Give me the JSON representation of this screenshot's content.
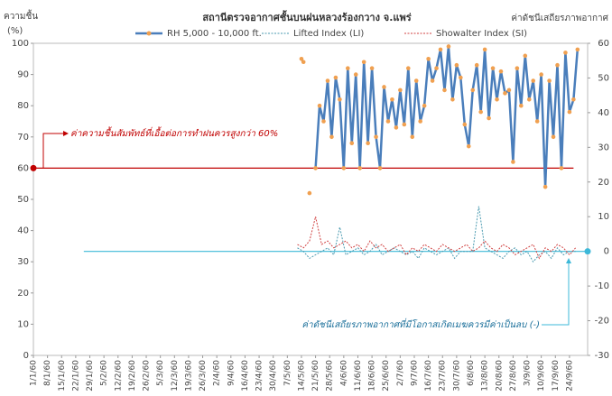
{
  "chart_data": {
    "type": "line",
    "title": "สถานีตรวจอากาศชั้นบนฝนหลวงร้องกวาง จ.แพร่",
    "y_label": "ความชื้น",
    "y_unit": "(%)",
    "y2_label": "ค่าดัชนีเสถียรภาพอากาศ",
    "ylim": [
      0,
      100
    ],
    "yticks": [
      0,
      10,
      20,
      30,
      40,
      50,
      60,
      70,
      80,
      90,
      100
    ],
    "y2lim": [
      -30,
      60
    ],
    "y2ticks": [
      -30,
      -20,
      -10,
      0,
      10,
      20,
      30,
      40,
      50,
      60
    ],
    "xlim": [
      0,
      275
    ],
    "xticks": [
      {
        "value": 0,
        "label": "1/1/60"
      },
      {
        "value": 7,
        "label": "8/1/60"
      },
      {
        "value": 14,
        "label": "15/1/60"
      },
      {
        "value": 21,
        "label": "22/1/60"
      },
      {
        "value": 28,
        "label": "29/1/60"
      },
      {
        "value": 35,
        "label": "5/2/60"
      },
      {
        "value": 42,
        "label": "12/2/60"
      },
      {
        "value": 49,
        "label": "19/2/60"
      },
      {
        "value": 56,
        "label": "26/2/60"
      },
      {
        "value": 63,
        "label": "5/3/60"
      },
      {
        "value": 70,
        "label": "12/3/60"
      },
      {
        "value": 77,
        "label": "19/3/60"
      },
      {
        "value": 84,
        "label": "26/3/60"
      },
      {
        "value": 91,
        "label": "2/4/60"
      },
      {
        "value": 98,
        "label": "9/4/60"
      },
      {
        "value": 105,
        "label": "16/4/60"
      },
      {
        "value": 112,
        "label": "23/4/60"
      },
      {
        "value": 119,
        "label": "30/4/60"
      },
      {
        "value": 126,
        "label": "7/5/60"
      },
      {
        "value": 133,
        "label": "14/5/60"
      },
      {
        "value": 140,
        "label": "21/5/60"
      },
      {
        "value": 147,
        "label": "28/5/60"
      },
      {
        "value": 154,
        "label": "4/6/60"
      },
      {
        "value": 161,
        "label": "11/6/60"
      },
      {
        "value": 168,
        "label": "18/6/60"
      },
      {
        "value": 175,
        "label": "25/6/60"
      },
      {
        "value": 182,
        "label": "2/7/60"
      },
      {
        "value": 189,
        "label": "9/7/60"
      },
      {
        "value": 196,
        "label": "16/7/60"
      },
      {
        "value": 203,
        "label": "23/7/60"
      },
      {
        "value": 210,
        "label": "30/7/60"
      },
      {
        "value": 217,
        "label": "6/8/60"
      },
      {
        "value": 224,
        "label": "13/8/60"
      },
      {
        "value": 231,
        "label": "20/8/60"
      },
      {
        "value": 238,
        "label": "27/8/60"
      },
      {
        "value": 245,
        "label": "3/9/60"
      },
      {
        "value": 252,
        "label": "10/9/60"
      },
      {
        "value": 259,
        "label": "17/9/60"
      },
      {
        "value": 266,
        "label": "24/9/60"
      }
    ],
    "series": [
      {
        "name": "RH 5,000 - 10,000 ft.",
        "color": "#4a7ebb",
        "marker_color": "#f0a050",
        "x": [
          133,
          134,
          135,
          137,
          138,
          140,
          142,
          144,
          146,
          148,
          150,
          152,
          154,
          156,
          158,
          160,
          162,
          164,
          166,
          168,
          170,
          172,
          174,
          176,
          178,
          180,
          182,
          184,
          186,
          188,
          190,
          192,
          194,
          196,
          198,
          200,
          202,
          204,
          206,
          208,
          210,
          212,
          214,
          216,
          218,
          220,
          222,
          224,
          226,
          228,
          230,
          232,
          234,
          236,
          238,
          240,
          242,
          244,
          246,
          248,
          250,
          252,
          254,
          256,
          258,
          260,
          262,
          264,
          266,
          268,
          270
        ],
        "values": [
          95,
          94,
          null,
          52,
          null,
          60,
          80,
          75,
          88,
          70,
          89,
          82,
          60,
          92,
          68,
          90,
          60,
          94,
          68,
          92,
          70,
          60,
          86,
          75,
          82,
          73,
          85,
          74,
          92,
          70,
          88,
          75,
          80,
          95,
          88,
          92,
          98,
          85,
          99,
          82,
          93,
          89,
          74,
          67,
          85,
          93,
          78,
          98,
          76,
          92,
          82,
          91,
          84,
          85,
          62,
          92,
          80,
          96,
          82,
          88,
          75,
          90,
          54,
          88,
          70,
          93,
          60,
          97,
          78,
          82,
          98
        ]
      },
      {
        "name": "Lifted Index (LI)",
        "color": "#4a9ab0",
        "axis": "y2",
        "x": [
          131,
          134,
          137,
          140,
          143,
          146,
          149,
          152,
          155,
          158,
          161,
          164,
          167,
          170,
          173,
          176,
          179,
          182,
          185,
          188,
          191,
          194,
          197,
          200,
          203,
          206,
          209,
          212,
          215,
          218,
          221,
          224,
          227,
          230,
          233,
          236,
          239,
          242,
          245,
          248,
          251,
          254,
          257,
          260,
          263,
          266,
          269
        ],
        "values": [
          1,
          0,
          -2,
          -1,
          0,
          1,
          -1,
          7,
          -1,
          0,
          1,
          -1,
          0,
          2,
          -1,
          0,
          1,
          0,
          -1,
          0,
          -2,
          1,
          0,
          -1,
          0,
          1,
          -2,
          0,
          0,
          0,
          13,
          1,
          0,
          -1,
          -2,
          0,
          1,
          -1,
          0,
          -3,
          -1,
          0,
          -2,
          1,
          -1,
          0,
          0
        ]
      },
      {
        "name": "Showalter Index (SI)",
        "color": "#d04040",
        "axis": "y2",
        "x": [
          131,
          134,
          137,
          140,
          143,
          146,
          149,
          152,
          155,
          158,
          161,
          164,
          167,
          170,
          173,
          176,
          179,
          182,
          185,
          188,
          191,
          194,
          197,
          200,
          203,
          206,
          209,
          212,
          215,
          218,
          221,
          224,
          227,
          230,
          233,
          236,
          239,
          242,
          245,
          248,
          251,
          254,
          257,
          260,
          263,
          266,
          269
        ],
        "values": [
          2,
          1,
          3,
          10,
          2,
          3,
          1,
          2,
          3,
          1,
          2,
          0,
          3,
          1,
          2,
          0,
          1,
          2,
          -1,
          1,
          0,
          2,
          1,
          0,
          2,
          1,
          0,
          1,
          2,
          0,
          1,
          3,
          1,
          0,
          2,
          1,
          -1,
          0,
          1,
          2,
          -2,
          1,
          0,
          2,
          1,
          -1,
          1
        ]
      }
    ],
    "reference_lines": [
      {
        "value": 60,
        "axis": "y",
        "color": "#c00000",
        "x_range": [
          0,
          268
        ],
        "label": "ค่าความชื้นสัมพัทธ์ที่เอื้อต่อการทำฝนควรสูงกว่า 60%"
      },
      {
        "value": 0,
        "axis": "y2",
        "color": "#3cb8d8",
        "x_range": [
          25,
          275
        ],
        "label": "ค่าดัชนีเสถียรภาพอากาศที่มีโอกาสเกิดเมฆควรมีค่าเป็นลบ (-)"
      }
    ]
  }
}
